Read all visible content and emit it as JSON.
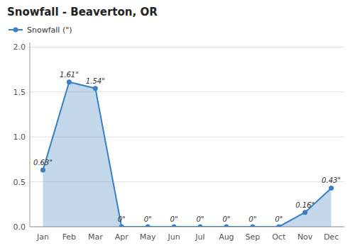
{
  "chart_data": {
    "type": "area",
    "title": "Snowfall - Beaverton, OR",
    "categories": [
      "Jan",
      "Feb",
      "Mar",
      "Apr",
      "May",
      "Jun",
      "Jul",
      "Aug",
      "Sep",
      "Oct",
      "Nov",
      "Dec"
    ],
    "series": [
      {
        "name": "Snowfall (\")",
        "color": "#3a7fc1",
        "values": [
          0.63,
          1.61,
          1.54,
          0.0,
          0.0,
          0.0,
          0.0,
          0.0,
          0.0,
          0.0,
          0.16,
          0.43
        ],
        "value_labels": [
          "0.63\"",
          "1.61\"",
          "1.54\"",
          "0\"",
          "0\"",
          "0\"",
          "0\"",
          "0\"",
          "0\"",
          "0\"",
          "0.16\"",
          "0.43\""
        ]
      }
    ],
    "ylim": [
      0.0,
      2.05
    ],
    "yticks": [
      {
        "value": 0.0,
        "label": "0.0"
      },
      0.5,
      {
        "value": 1.0,
        "label": "1.0"
      },
      1.5,
      {
        "value": 2.0,
        "label": "2.0"
      }
    ],
    "grid": true,
    "legend": "upper left",
    "data_labels": true,
    "marker": "circle"
  }
}
